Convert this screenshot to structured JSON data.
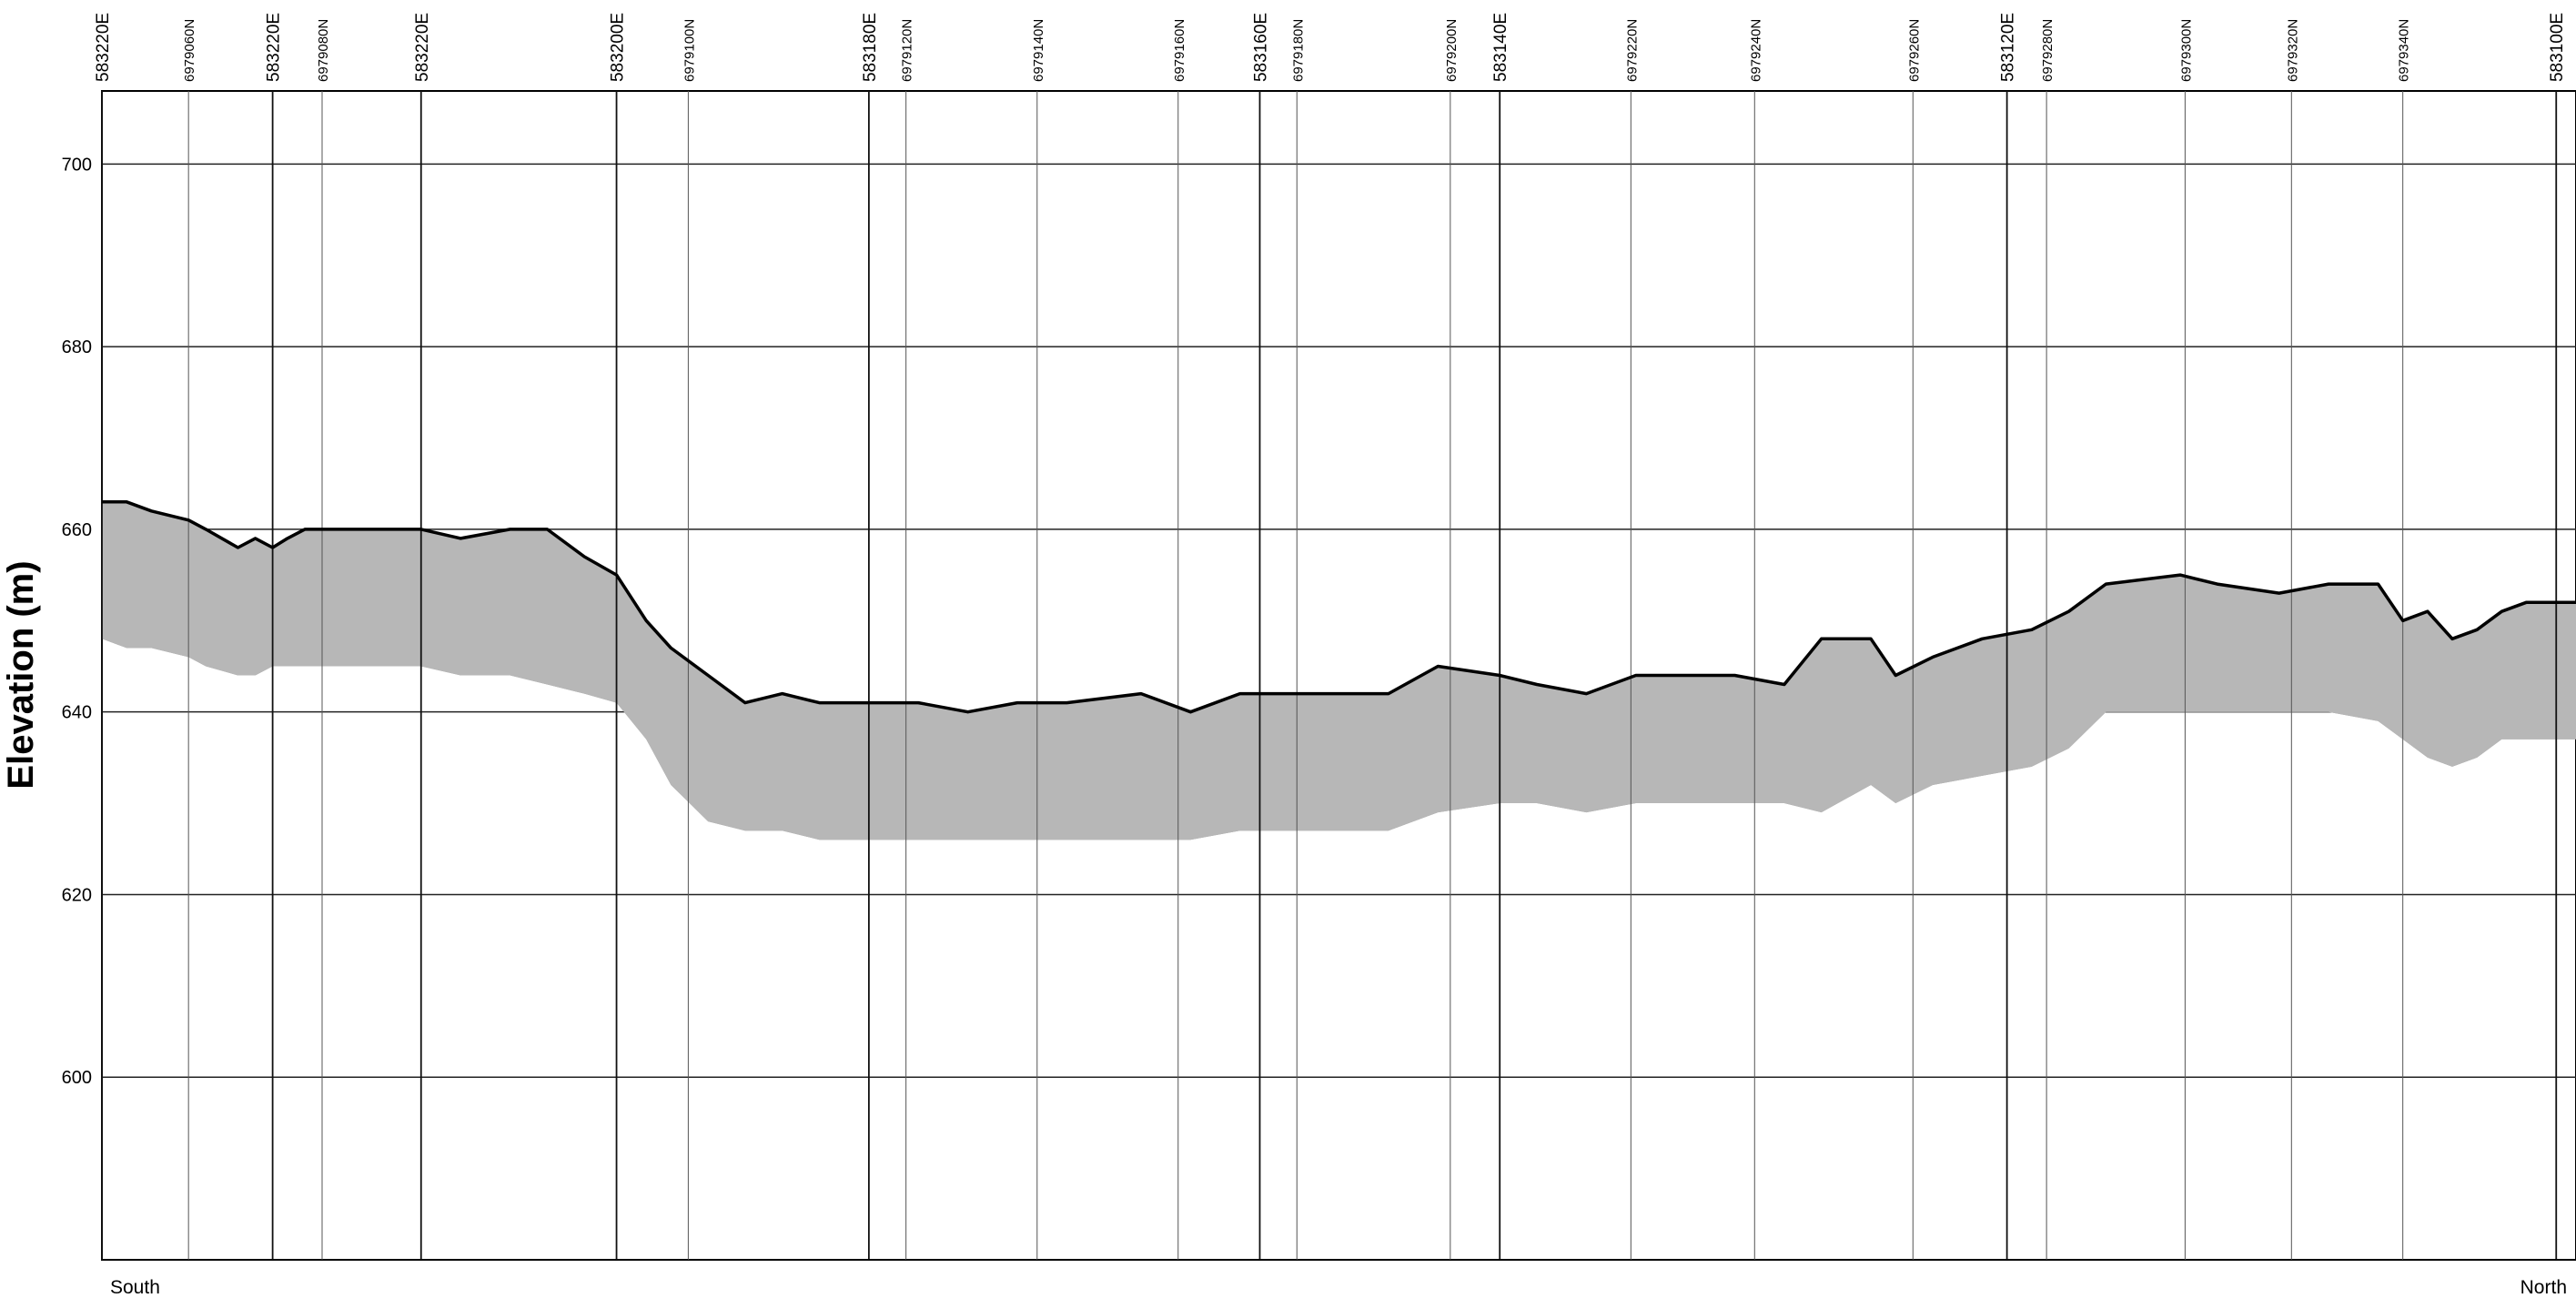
{
  "chart_data": {
    "type": "area",
    "title": "",
    "xlabel": "",
    "ylabel": "Elevation (m)",
    "ylim": [
      580,
      708
    ],
    "y_ticks": [
      600,
      620,
      640,
      660,
      680,
      700
    ],
    "grid": true,
    "x_range": [
      0,
      100
    ],
    "direction_labels": {
      "start": "South",
      "end": "North"
    },
    "easting_ticks": [
      {
        "label": "583220E",
        "pos": 0.0
      },
      {
        "label": "583220E",
        "pos": 6.9
      },
      {
        "label": "583220E",
        "pos": 12.9
      },
      {
        "label": "583200E",
        "pos": 20.8
      },
      {
        "label": "583180E",
        "pos": 31.0
      },
      {
        "label": "583160E",
        "pos": 46.8
      },
      {
        "label": "583140E",
        "pos": 56.5
      },
      {
        "label": "583120E",
        "pos": 77.0
      },
      {
        "label": "583100E",
        "pos": 99.2
      }
    ],
    "northing_ticks": [
      {
        "label": "6979060N",
        "pos": 3.5
      },
      {
        "label": "6979080N",
        "pos": 8.9
      },
      {
        "label": "6979100N",
        "pos": 23.7
      },
      {
        "label": "6979120N",
        "pos": 32.5
      },
      {
        "label": "6979140N",
        "pos": 37.8
      },
      {
        "label": "6979160N",
        "pos": 43.5
      },
      {
        "label": "6979180N",
        "pos": 48.3
      },
      {
        "label": "6979200N",
        "pos": 54.5
      },
      {
        "label": "6979220N",
        "pos": 61.8
      },
      {
        "label": "6979240N",
        "pos": 66.8
      },
      {
        "label": "6979260N",
        "pos": 73.2
      },
      {
        "label": "6979280N",
        "pos": 78.6
      },
      {
        "label": "6979300N",
        "pos": 84.2
      },
      {
        "label": "6979320N",
        "pos": 88.5
      },
      {
        "label": "6979340N",
        "pos": 93.0
      }
    ],
    "series": [
      {
        "x": [
          0,
          1,
          2,
          3.5,
          4.2,
          5.5,
          6.2,
          6.9,
          7.5,
          8.2,
          12.9,
          14.5,
          16.5,
          18.0,
          19.5,
          20.8,
          22.0,
          23.0,
          24.5,
          26.0,
          27.5,
          29.0,
          31.0,
          33.0,
          35.0,
          37.0,
          39.0,
          42.0,
          44.0,
          46.0,
          48.0,
          52.0,
          54.0,
          56.5,
          58.0,
          60.0,
          62.0,
          64.0,
          66.0,
          68.0,
          69.5,
          71.5,
          72.5,
          74.0,
          76.0,
          78.0,
          79.5,
          81.0,
          84.0,
          85.5,
          88.0,
          90.0,
          92.0,
          93.0,
          94.0,
          95.0,
          96.0,
          97.0,
          98.0,
          100.0
        ],
        "surface": [
          663,
          663,
          662,
          661,
          660,
          658,
          659,
          658,
          659,
          660,
          660,
          659,
          660,
          660,
          657,
          655,
          650,
          647,
          644,
          641,
          642,
          641,
          641,
          641,
          640,
          641,
          641,
          642,
          640,
          642,
          642,
          642,
          645,
          644,
          643,
          642,
          644,
          644,
          644,
          643,
          648,
          648,
          644,
          646,
          648,
          649,
          651,
          654,
          655,
          654,
          653,
          654,
          654,
          650,
          651,
          648,
          649,
          651,
          652,
          652
        ],
        "base": [
          648,
          647,
          647,
          646,
          645,
          644,
          644,
          645,
          645,
          645,
          645,
          644,
          644,
          643,
          642,
          641,
          637,
          632,
          628,
          627,
          627,
          626,
          626,
          626,
          626,
          626,
          626,
          626,
          626,
          627,
          627,
          627,
          629,
          630,
          630,
          629,
          630,
          630,
          630,
          630,
          629,
          632,
          630,
          632,
          633,
          634,
          636,
          640,
          640,
          640,
          640,
          640,
          639,
          637,
          635,
          634,
          635,
          637,
          637,
          637
        ]
      }
    ]
  }
}
